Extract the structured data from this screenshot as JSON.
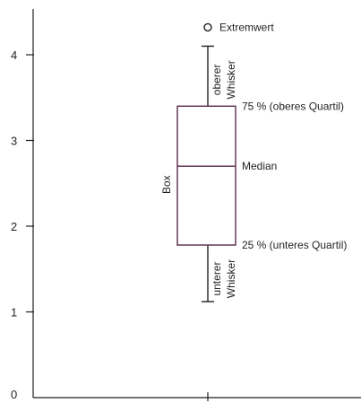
{
  "chart_data": {
    "type": "box",
    "y_ticks": [
      "0",
      "1",
      "2",
      "3",
      "4"
    ],
    "ylim": [
      0,
      4.5
    ],
    "box": {
      "lower_whisker": 1.12,
      "q1": 1.78,
      "median": 2.7,
      "q3": 3.4,
      "upper_whisker": 4.1,
      "outlier": 4.32
    },
    "annotations": {
      "outlier": "Extremwert",
      "upper_whisker_line1": "oberer",
      "upper_whisker_line2": "Whisker",
      "q3": "75 % (oberes Quartil)",
      "median": "Median",
      "box": "Box",
      "q1": "25 % (unteres Quartil)",
      "lower_whisker_line1": "unterer",
      "lower_whisker_line2": "Whisker"
    },
    "colors": {
      "box": "#5a2a4a",
      "ink": "#231f20"
    }
  }
}
